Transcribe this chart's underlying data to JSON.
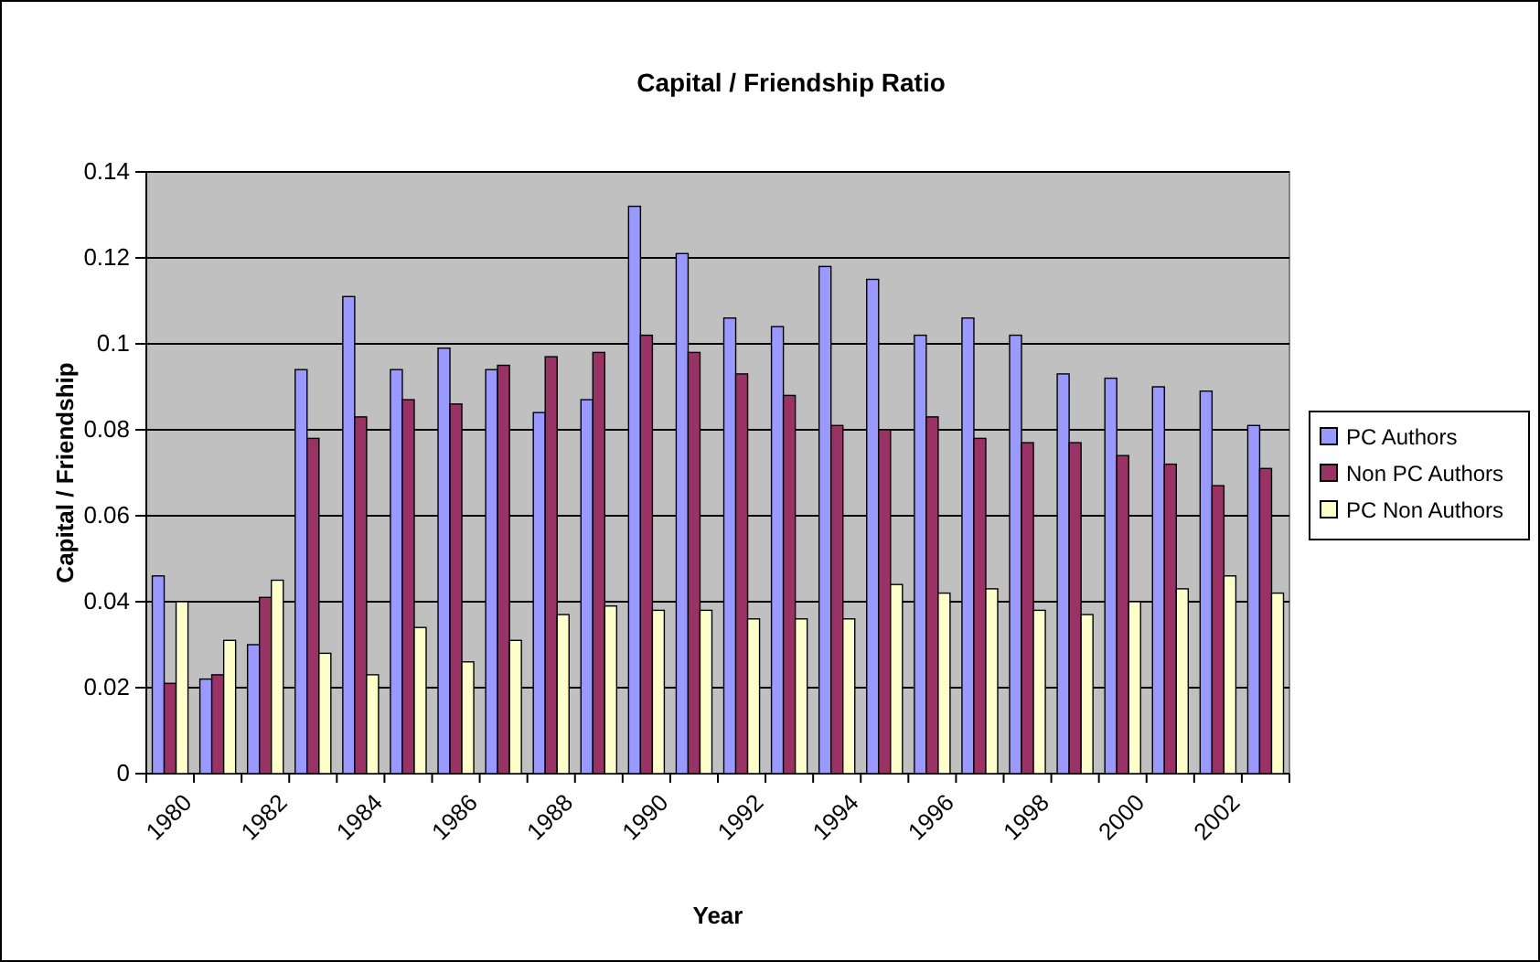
{
  "chart_data": {
    "type": "bar",
    "title": "Capital / Friendship Ratio",
    "xlabel": "Year",
    "ylabel": "Capital / Friendship",
    "categories": [
      "1980",
      null,
      "1982",
      null,
      "1984",
      null,
      "1986",
      null,
      "1988",
      null,
      "1990",
      null,
      "1992",
      null,
      "1994",
      null,
      "1996",
      null,
      "1998",
      null,
      "2000",
      null,
      "2002",
      null
    ],
    "series": [
      {
        "name": "PC Authors",
        "color": "#9999ff",
        "values": [
          0.046,
          0.022,
          0.03,
          0.094,
          0.111,
          0.094,
          0.099,
          0.094,
          0.084,
          0.087,
          0.132,
          0.121,
          0.106,
          0.104,
          0.118,
          0.115,
          0.102,
          0.106,
          0.102,
          0.093,
          0.092,
          0.09,
          0.089,
          0.081
        ]
      },
      {
        "name": "Non PC Authors",
        "color": "#993366",
        "values": [
          0.021,
          0.023,
          0.041,
          0.078,
          0.083,
          0.087,
          0.086,
          0.095,
          0.097,
          0.098,
          0.102,
          0.098,
          0.093,
          0.088,
          0.081,
          0.08,
          0.083,
          0.078,
          0.077,
          0.077,
          0.074,
          0.072,
          0.067,
          0.071
        ]
      },
      {
        "name": "PC Non Authors",
        "color": "#ffffcc",
        "values": [
          0.04,
          0.031,
          0.045,
          0.028,
          0.023,
          0.034,
          0.026,
          0.031,
          0.037,
          0.039,
          0.038,
          0.038,
          0.036,
          0.036,
          0.036,
          0.044,
          0.042,
          0.043,
          0.038,
          0.037,
          0.04,
          0.043,
          0.046,
          0.042
        ]
      }
    ],
    "ylim": [
      0,
      0.14
    ],
    "yticks": [
      0,
      0.02,
      0.04,
      0.06,
      0.08,
      0.1,
      0.12,
      0.14
    ],
    "grid": "y",
    "legend": "right"
  }
}
